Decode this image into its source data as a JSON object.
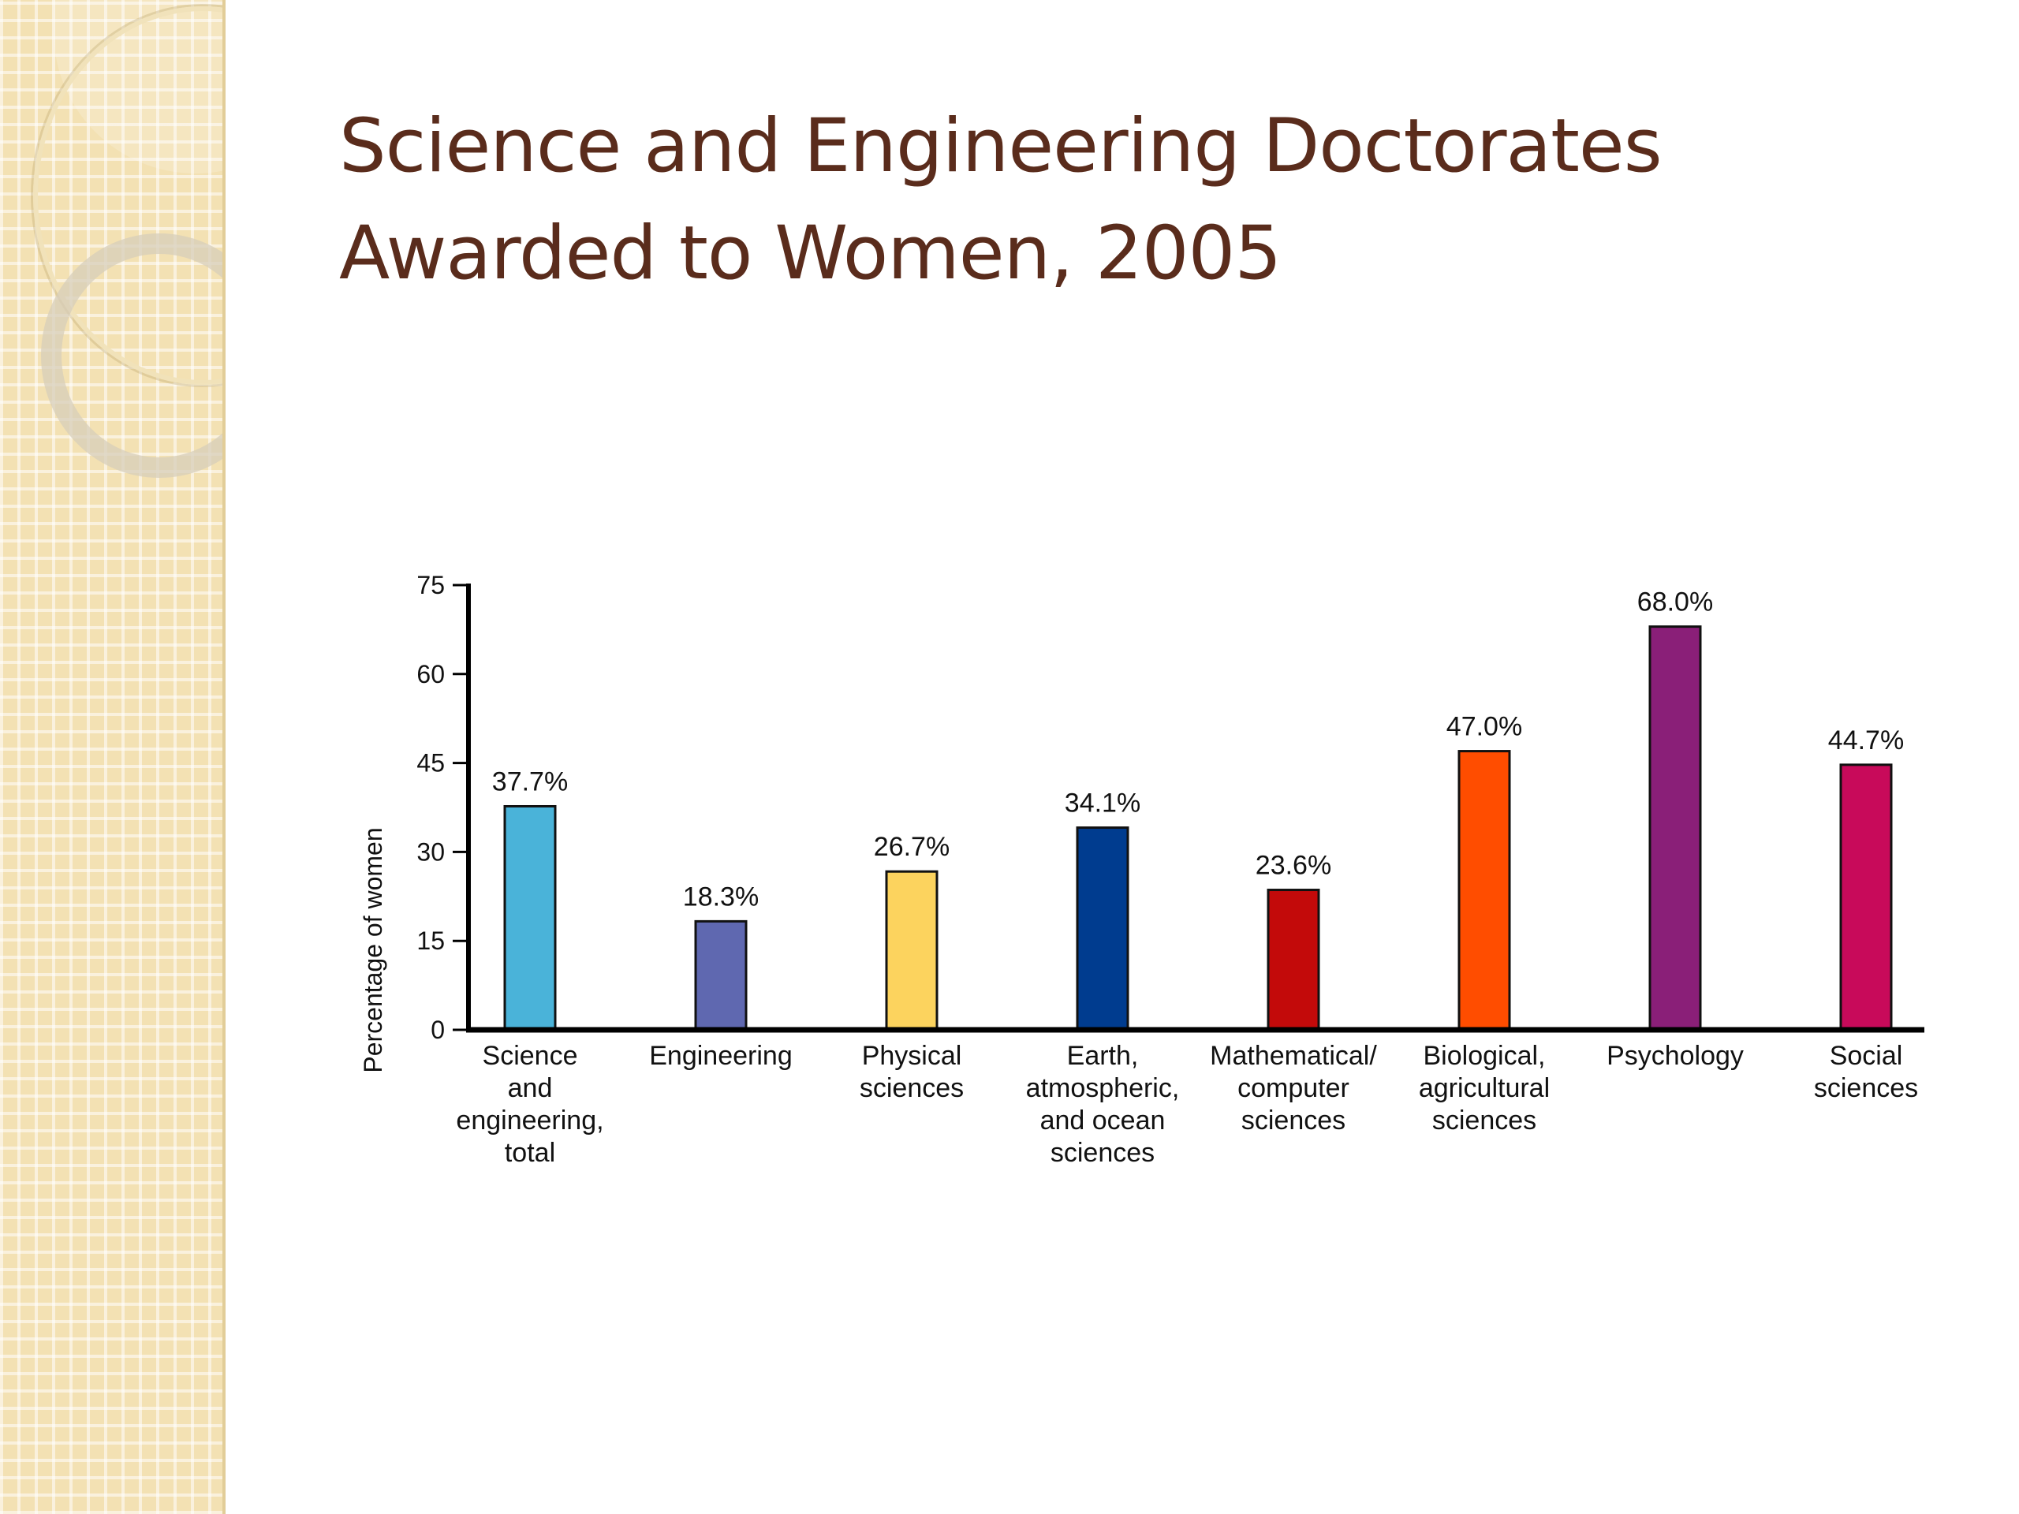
{
  "slide": {
    "title_line1": "Science and Engineering Doctorates",
    "title_line2": "Awarded to Women, 2005"
  },
  "chart_data": {
    "type": "bar",
    "ylabel": "Percentage of women",
    "ylim": [
      0,
      75
    ],
    "yticks": [
      0,
      15,
      30,
      45,
      60,
      75
    ],
    "grid": false,
    "categories": [
      [
        "Science",
        "and",
        "engineering,",
        "total"
      ],
      [
        "Engineering"
      ],
      [
        "Physical",
        "sciences"
      ],
      [
        "Earth,",
        "atmospheric,",
        "and ocean",
        "sciences"
      ],
      [
        "Mathematical/",
        "computer",
        "sciences"
      ],
      [
        "Biological,",
        "agricultural",
        "sciences"
      ],
      [
        "Psychology"
      ],
      [
        "Social",
        "sciences"
      ]
    ],
    "values": [
      37.7,
      18.3,
      26.7,
      34.1,
      23.6,
      47.0,
      68.0,
      44.7
    ],
    "value_labels": [
      "37.7%",
      "18.3%",
      "26.7%",
      "34.1%",
      "23.6%",
      "47.0%",
      "68.0%",
      "44.7%"
    ],
    "colors": [
      "#4ab3d9",
      "#5f68b0",
      "#fcd35e",
      "#003c8f",
      "#c30a0a",
      "#ff4d00",
      "#8a1f78",
      "#c80a5a"
    ]
  }
}
